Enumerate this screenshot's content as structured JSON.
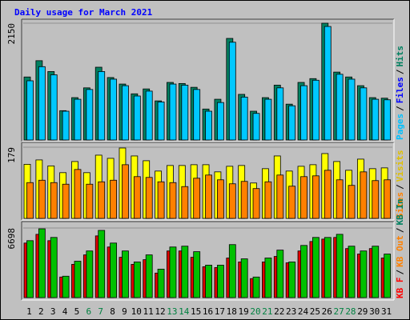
{
  "chart_data": {
    "type": "bar",
    "title": "Daily usage for March 2021",
    "categories": [
      "1",
      "2",
      "3",
      "4",
      "5",
      "6",
      "7",
      "8",
      "9",
      "10",
      "11",
      "12",
      "13",
      "14",
      "15",
      "16",
      "17",
      "18",
      "19",
      "20",
      "21",
      "22",
      "23",
      "24",
      "25",
      "26",
      "27",
      "28",
      "29",
      "30",
      "31"
    ],
    "category_colors": [
      "#000000",
      "#000000",
      "#000000",
      "#000000",
      "#000000",
      "#008040",
      "#008040",
      "#000000",
      "#000000",
      "#000000",
      "#000000",
      "#000000",
      "#008040",
      "#008040",
      "#000000",
      "#000000",
      "#000000",
      "#000000",
      "#000000",
      "#008040",
      "#008040",
      "#000000",
      "#000000",
      "#000000",
      "#000000",
      "#000000",
      "#008040",
      "#008040",
      "#000000",
      "#000000",
      "#000000"
    ],
    "legend_separator": "/",
    "panels": [
      {
        "ylim": [
          0,
          2150
        ],
        "yticks": [
          2150
        ],
        "legend": [
          {
            "name": "Pages",
            "color": "#00c0ff"
          },
          {
            "name": "Files",
            "color": "#0000ff"
          },
          {
            "name": "Hits",
            "color": "#008060"
          }
        ],
        "series": [
          {
            "color": "#008060",
            "values": [
              1160,
              1460,
              1260,
              540,
              780,
              960,
              1340,
              1150,
              1030,
              850,
              940,
              720,
              1060,
              1040,
              970,
              570,
              750,
              1870,
              840,
              530,
              780,
              1010,
              660,
              1060,
              1130,
              2150,
              1250,
              1160,
              1000,
              780,
              770
            ]
          },
          {
            "color": "#00c8ff",
            "values": [
              1090,
              1350,
              1200,
              530,
              750,
              930,
              1260,
              1120,
              1000,
              810,
              900,
              700,
              1030,
              1010,
              930,
              530,
              690,
              1800,
              790,
              490,
              750,
              960,
              630,
              1000,
              1100,
              2090,
              1210,
              1120,
              960,
              750,
              740
            ]
          }
        ]
      },
      {
        "ylim": [
          0,
          179
        ],
        "yticks": [
          179
        ],
        "legend": [
          {
            "name": "Sites",
            "color": "#ff8000"
          },
          {
            "name": "Visits",
            "color": "#e0c000"
          }
        ],
        "series": [
          {
            "color": "#ffff00",
            "values": [
              136,
              147,
              132,
              115,
              143,
              115,
              159,
              151,
              177,
              157,
              145,
              119,
              133,
              133,
              135,
              135,
              117,
              131,
              133,
              89,
              125,
              157,
              119,
              131,
              135,
              163,
              143,
              121,
              149,
              125,
              127
            ]
          },
          {
            "color": "#ff8000",
            "values": [
              90,
              96,
              90,
              86,
              123,
              86,
              92,
              96,
              135,
              105,
              103,
              92,
              90,
              80,
              101,
              109,
              97,
              87,
              93,
              75,
              92,
              109,
              81,
              105,
              107,
              121,
              97,
              83,
              117,
              95,
              97
            ]
          }
        ]
      },
      {
        "ylim": [
          0,
          6698
        ],
        "yticks": [
          6698
        ],
        "legend": [
          {
            "name": "KB F",
            "color": "#ff0000"
          },
          {
            "name": "KB Out",
            "color": "#ff8000"
          },
          {
            "name": "KB In",
            "color": "#008060"
          }
        ],
        "series": [
          {
            "color": "#e00000",
            "values": [
              5250,
              6090,
              5480,
              1980,
              3200,
              4110,
              5940,
              4870,
              3880,
              3200,
              3650,
              2360,
              4490,
              4490,
              3880,
              2970,
              2890,
              3810,
              3430,
              1830,
              3430,
              3960,
              3350,
              4490,
              5400,
              5630,
              5790,
              4720,
              4190,
              4720,
              3810
            ]
          },
          {
            "color": "#00c000",
            "values": [
              5480,
              6620,
              5790,
              2060,
              3500,
              4490,
              6470,
              5250,
              4490,
              3430,
              4110,
              2740,
              4870,
              4950,
              4420,
              3120,
              3120,
              5100,
              3730,
              1980,
              3810,
              4570,
              3430,
              5020,
              5790,
              5790,
              6090,
              4950,
              4490,
              4950,
              4190
            ]
          }
        ]
      }
    ]
  }
}
